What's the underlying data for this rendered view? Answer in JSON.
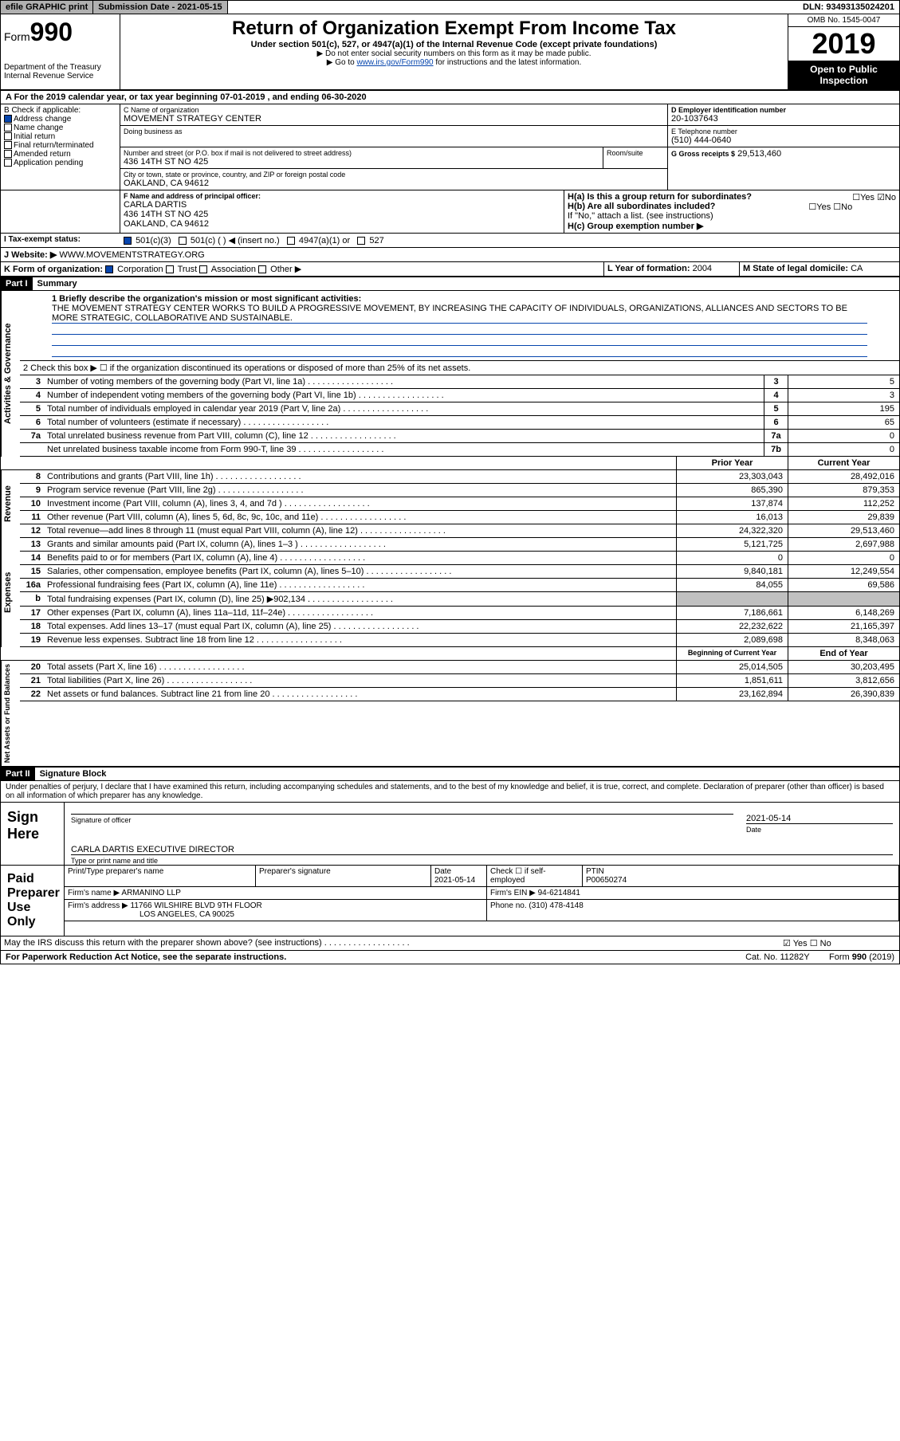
{
  "topbar": {
    "efile": "efile GRAPHIC print",
    "submission_label": "Submission Date - 2021-05-15",
    "dln": "DLN: 93493135024201"
  },
  "header": {
    "form_prefix": "Form",
    "form_number": "990",
    "dept": "Department of the Treasury",
    "irs": "Internal Revenue Service",
    "title": "Return of Organization Exempt From Income Tax",
    "subtitle": "Under section 501(c), 527, or 4947(a)(1) of the Internal Revenue Code (except private foundations)",
    "note1": "▶ Do not enter social security numbers on this form as it may be made public.",
    "note2_prefix": "▶ Go to ",
    "note2_link": "www.irs.gov/Form990",
    "note2_suffix": " for instructions and the latest information.",
    "omb": "OMB No. 1545-0047",
    "year": "2019",
    "otp": "Open to Public Inspection"
  },
  "period": "A For the 2019 calendar year, or tax year beginning 07-01-2019   , and ending 06-30-2020",
  "sectionB": {
    "label": "B Check if applicable:",
    "items": [
      {
        "label": "Address change",
        "checked": true
      },
      {
        "label": "Name change",
        "checked": false
      },
      {
        "label": "Initial return",
        "checked": false
      },
      {
        "label": "Final return/terminated",
        "checked": false
      },
      {
        "label": "Amended return",
        "checked": false
      },
      {
        "label": "Application pending",
        "checked": false
      }
    ]
  },
  "sectionC": {
    "name_label": "C Name of organization",
    "name": "MOVEMENT STRATEGY CENTER",
    "dba_label": "Doing business as",
    "addr_label": "Number and street (or P.O. box if mail is not delivered to street address)",
    "room_label": "Room/suite",
    "addr": "436 14TH ST NO 425",
    "city_label": "City or town, state or province, country, and ZIP or foreign postal code",
    "city": "OAKLAND, CA  94612"
  },
  "sectionD": {
    "label": "D Employer identification number",
    "value": "20-1037643"
  },
  "sectionE": {
    "label": "E Telephone number",
    "value": "(510) 444-0640"
  },
  "sectionG": {
    "label": "G Gross receipts $",
    "value": "29,513,460"
  },
  "sectionF": {
    "label": "F Name and address of principal officer:",
    "name": "CARLA DARTIS",
    "addr1": "436 14TH ST NO 425",
    "addr2": "OAKLAND, CA  94612"
  },
  "sectionH": {
    "ha": "H(a)  Is this a group return for subordinates?",
    "ha_no": true,
    "hb": "H(b)  Are all subordinates included?",
    "hb_note": "If \"No,\" attach a list. (see instructions)",
    "hc": "H(c)  Group exemption number ▶"
  },
  "sectionI": {
    "label": "I Tax-exempt status:",
    "opts": [
      "501(c)(3)",
      "501(c) (  ) ◀ (insert no.)",
      "4947(a)(1) or",
      "527"
    ],
    "checked_idx": 0
  },
  "sectionJ": {
    "label": "J Website: ▶",
    "value": "WWW.MOVEMENTSTRATEGY.ORG"
  },
  "sectionK": {
    "label": "K Form of organization:",
    "opts": [
      "Corporation",
      "Trust",
      "Association",
      "Other ▶"
    ],
    "checked_idx": 0
  },
  "sectionL": {
    "label": "L Year of formation:",
    "value": "2004"
  },
  "sectionM": {
    "label": "M State of legal domicile:",
    "value": "CA"
  },
  "part1": {
    "hdr": "Part I",
    "title": "Summary",
    "q1_label": "1  Briefly describe the organization's mission or most significant activities:",
    "mission": "THE MOVEMENT STRATEGY CENTER WORKS TO BUILD A PROGRESSIVE MOVEMENT, BY INCREASING THE CAPACITY OF INDIVIDUALS, ORGANIZATIONS, ALLIANCES AND SECTORS TO BE MORE STRATEGIC, COLLABORATIVE AND SUSTAINABLE.",
    "q2": "2   Check this box ▶ ☐  if the organization discontinued its operations or disposed of more than 25% of its net assets.",
    "governance_label": "Activities & Governance",
    "revenue_label": "Revenue",
    "expenses_label": "Expenses",
    "netassets_label": "Net Assets or Fund Balances",
    "rows_gov": [
      {
        "n": "3",
        "txt": "Number of voting members of the governing body (Part VI, line 1a)",
        "box": "3",
        "val": "5"
      },
      {
        "n": "4",
        "txt": "Number of independent voting members of the governing body (Part VI, line 1b)",
        "box": "4",
        "val": "3"
      },
      {
        "n": "5",
        "txt": "Total number of individuals employed in calendar year 2019 (Part V, line 2a)",
        "box": "5",
        "val": "195"
      },
      {
        "n": "6",
        "txt": "Total number of volunteers (estimate if necessary)",
        "box": "6",
        "val": "65"
      },
      {
        "n": "7a",
        "txt": "Total unrelated business revenue from Part VIII, column (C), line 12",
        "box": "7a",
        "val": "0"
      },
      {
        "n": "",
        "txt": "Net unrelated business taxable income from Form 990-T, line 39",
        "box": "7b",
        "val": "0"
      }
    ],
    "col_prior": "Prior Year",
    "col_current": "Current Year",
    "rows_rev": [
      {
        "n": "8",
        "txt": "Contributions and grants (Part VIII, line 1h)",
        "prior": "23,303,043",
        "curr": "28,492,016"
      },
      {
        "n": "9",
        "txt": "Program service revenue (Part VIII, line 2g)",
        "prior": "865,390",
        "curr": "879,353"
      },
      {
        "n": "10",
        "txt": "Investment income (Part VIII, column (A), lines 3, 4, and 7d )",
        "prior": "137,874",
        "curr": "112,252"
      },
      {
        "n": "11",
        "txt": "Other revenue (Part VIII, column (A), lines 5, 6d, 8c, 9c, 10c, and 11e)",
        "prior": "16,013",
        "curr": "29,839"
      },
      {
        "n": "12",
        "txt": "Total revenue—add lines 8 through 11 (must equal Part VIII, column (A), line 12)",
        "prior": "24,322,320",
        "curr": "29,513,460"
      }
    ],
    "rows_exp": [
      {
        "n": "13",
        "txt": "Grants and similar amounts paid (Part IX, column (A), lines 1–3 )",
        "prior": "5,121,725",
        "curr": "2,697,988"
      },
      {
        "n": "14",
        "txt": "Benefits paid to or for members (Part IX, column (A), line 4)",
        "prior": "0",
        "curr": "0"
      },
      {
        "n": "15",
        "txt": "Salaries, other compensation, employee benefits (Part IX, column (A), lines 5–10)",
        "prior": "9,840,181",
        "curr": "12,249,554"
      },
      {
        "n": "16a",
        "txt": "Professional fundraising fees (Part IX, column (A), line 11e)",
        "prior": "84,055",
        "curr": "69,586"
      },
      {
        "n": "b",
        "txt": "Total fundraising expenses (Part IX, column (D), line 25) ▶902,134",
        "prior": "",
        "curr": "",
        "shade": true
      },
      {
        "n": "17",
        "txt": "Other expenses (Part IX, column (A), lines 11a–11d, 11f–24e)",
        "prior": "7,186,661",
        "curr": "6,148,269"
      },
      {
        "n": "18",
        "txt": "Total expenses. Add lines 13–17 (must equal Part IX, column (A), line 25)",
        "prior": "22,232,622",
        "curr": "21,165,397"
      },
      {
        "n": "19",
        "txt": "Revenue less expenses. Subtract line 18 from line 12",
        "prior": "2,089,698",
        "curr": "8,348,063"
      }
    ],
    "col_begin": "Beginning of Current Year",
    "col_end": "End of Year",
    "rows_net": [
      {
        "n": "20",
        "txt": "Total assets (Part X, line 16)",
        "prior": "25,014,505",
        "curr": "30,203,495"
      },
      {
        "n": "21",
        "txt": "Total liabilities (Part X, line 26)",
        "prior": "1,851,611",
        "curr": "3,812,656"
      },
      {
        "n": "22",
        "txt": "Net assets or fund balances. Subtract line 21 from line 20",
        "prior": "23,162,894",
        "curr": "26,390,839"
      }
    ]
  },
  "part2": {
    "hdr": "Part II",
    "title": "Signature Block",
    "penalty": "Under penalties of perjury, I declare that I have examined this return, including accompanying schedules and statements, and to the best of my knowledge and belief, it is true, correct, and complete. Declaration of preparer (other than officer) is based on all information of which preparer has any knowledge.",
    "sign_here": "Sign Here",
    "sig_officer": "Signature of officer",
    "sig_date": "2021-05-14",
    "date_lbl": "Date",
    "officer_name": "CARLA DARTIS  EXECUTIVE DIRECTOR",
    "type_name": "Type or print name and title",
    "paid_prep": "Paid Preparer Use Only",
    "prep_name_lbl": "Print/Type preparer's name",
    "prep_sig_lbl": "Preparer's signature",
    "prep_date_lbl": "Date",
    "prep_date": "2021-05-14",
    "prep_check": "Check ☐ if self-employed",
    "ptin_lbl": "PTIN",
    "ptin": "P00650274",
    "firm_name_lbl": "Firm's name    ▶",
    "firm_name": "ARMANINO LLP",
    "firm_ein_lbl": "Firm's EIN ▶",
    "firm_ein": "94-6214841",
    "firm_addr_lbl": "Firm's address ▶",
    "firm_addr1": "11766 WILSHIRE BLVD 9TH FLOOR",
    "firm_addr2": "LOS ANGELES, CA  90025",
    "firm_phone_lbl": "Phone no.",
    "firm_phone": "(310) 478-4148",
    "discuss": "May the IRS discuss this return with the preparer shown above? (see instructions)",
    "discuss_yes": true
  },
  "footer": {
    "left": "For Paperwork Reduction Act Notice, see the separate instructions.",
    "mid": "Cat. No. 11282Y",
    "right": "Form 990 (2019)"
  }
}
